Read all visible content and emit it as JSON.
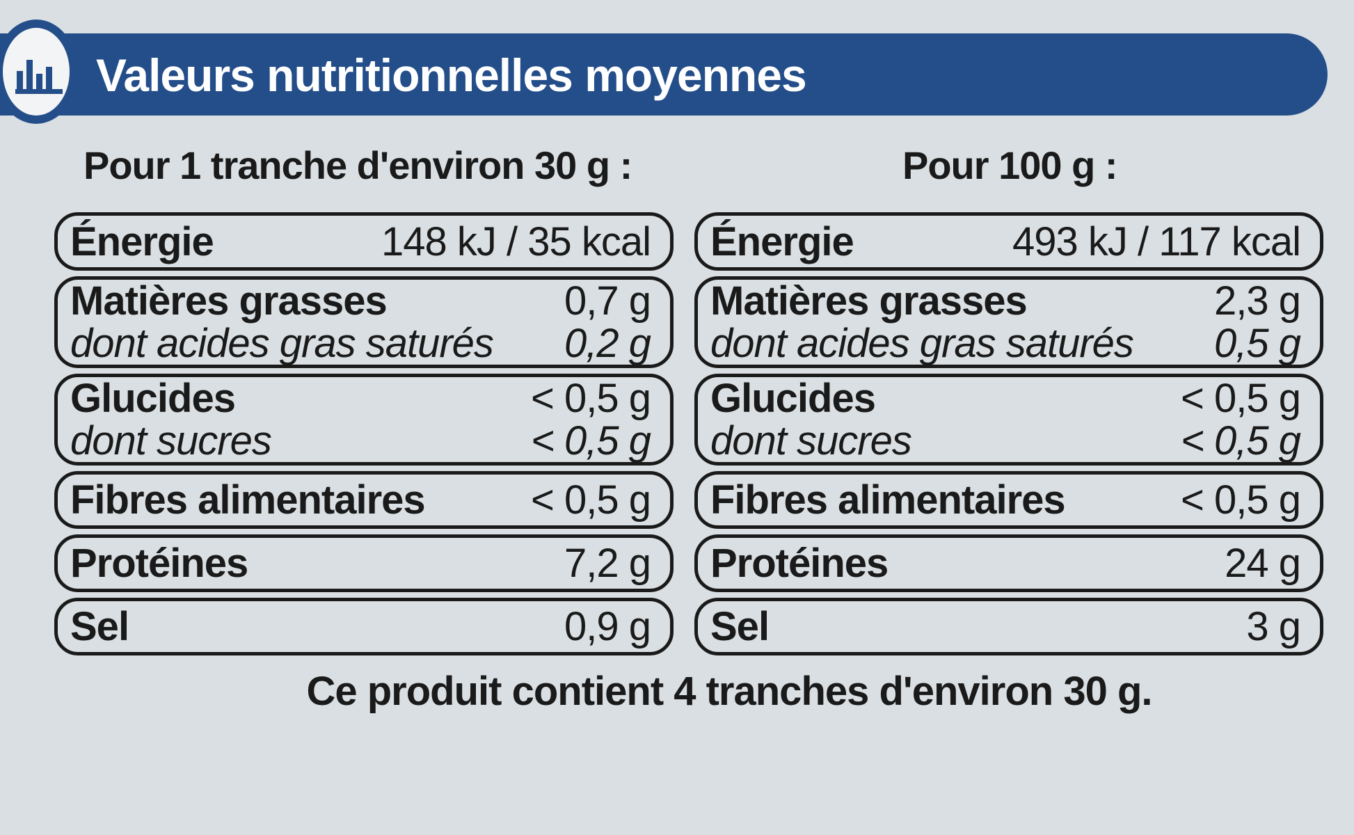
{
  "header": {
    "title": "Valeurs nutritionnelles moyennes",
    "icon": "bar-chart-icon",
    "banner_color": "#244e8a"
  },
  "columns": [
    {
      "heading": "Pour 1 tranche d'environ 30 g :",
      "rows": {
        "energie": {
          "label": "Énergie",
          "value": "148 kJ / 35 kcal"
        },
        "matieres_grasses": {
          "label": "Matières grasses",
          "value": "0,7 g"
        },
        "satures": {
          "label": "dont acides gras saturés",
          "value": "0,2 g"
        },
        "glucides": {
          "label": "Glucides",
          "value": "< 0,5 g"
        },
        "sucres": {
          "label": "dont sucres",
          "value": "< 0,5 g"
        },
        "fibres": {
          "label": "Fibres alimentaires",
          "value": "< 0,5 g"
        },
        "proteines": {
          "label": "Protéines",
          "value": "7,2 g"
        },
        "sel": {
          "label": "Sel",
          "value": "0,9 g"
        }
      }
    },
    {
      "heading": "Pour 100 g :",
      "rows": {
        "energie": {
          "label": "Énergie",
          "value": "493 kJ / 117 kcal"
        },
        "matieres_grasses": {
          "label": "Matières grasses",
          "value": "2,3 g"
        },
        "satures": {
          "label": "dont acides gras saturés",
          "value": "0,5 g"
        },
        "glucides": {
          "label": "Glucides",
          "value": "< 0,5 g"
        },
        "sucres": {
          "label": "dont sucres",
          "value": "< 0,5 g"
        },
        "fibres": {
          "label": "Fibres alimentaires",
          "value": "< 0,5 g"
        },
        "proteines": {
          "label": "Protéines",
          "value": "24 g"
        },
        "sel": {
          "label": "Sel",
          "value": "3 g"
        }
      }
    }
  ],
  "footer": "Ce produit contient 4 tranches d'environ 30 g."
}
